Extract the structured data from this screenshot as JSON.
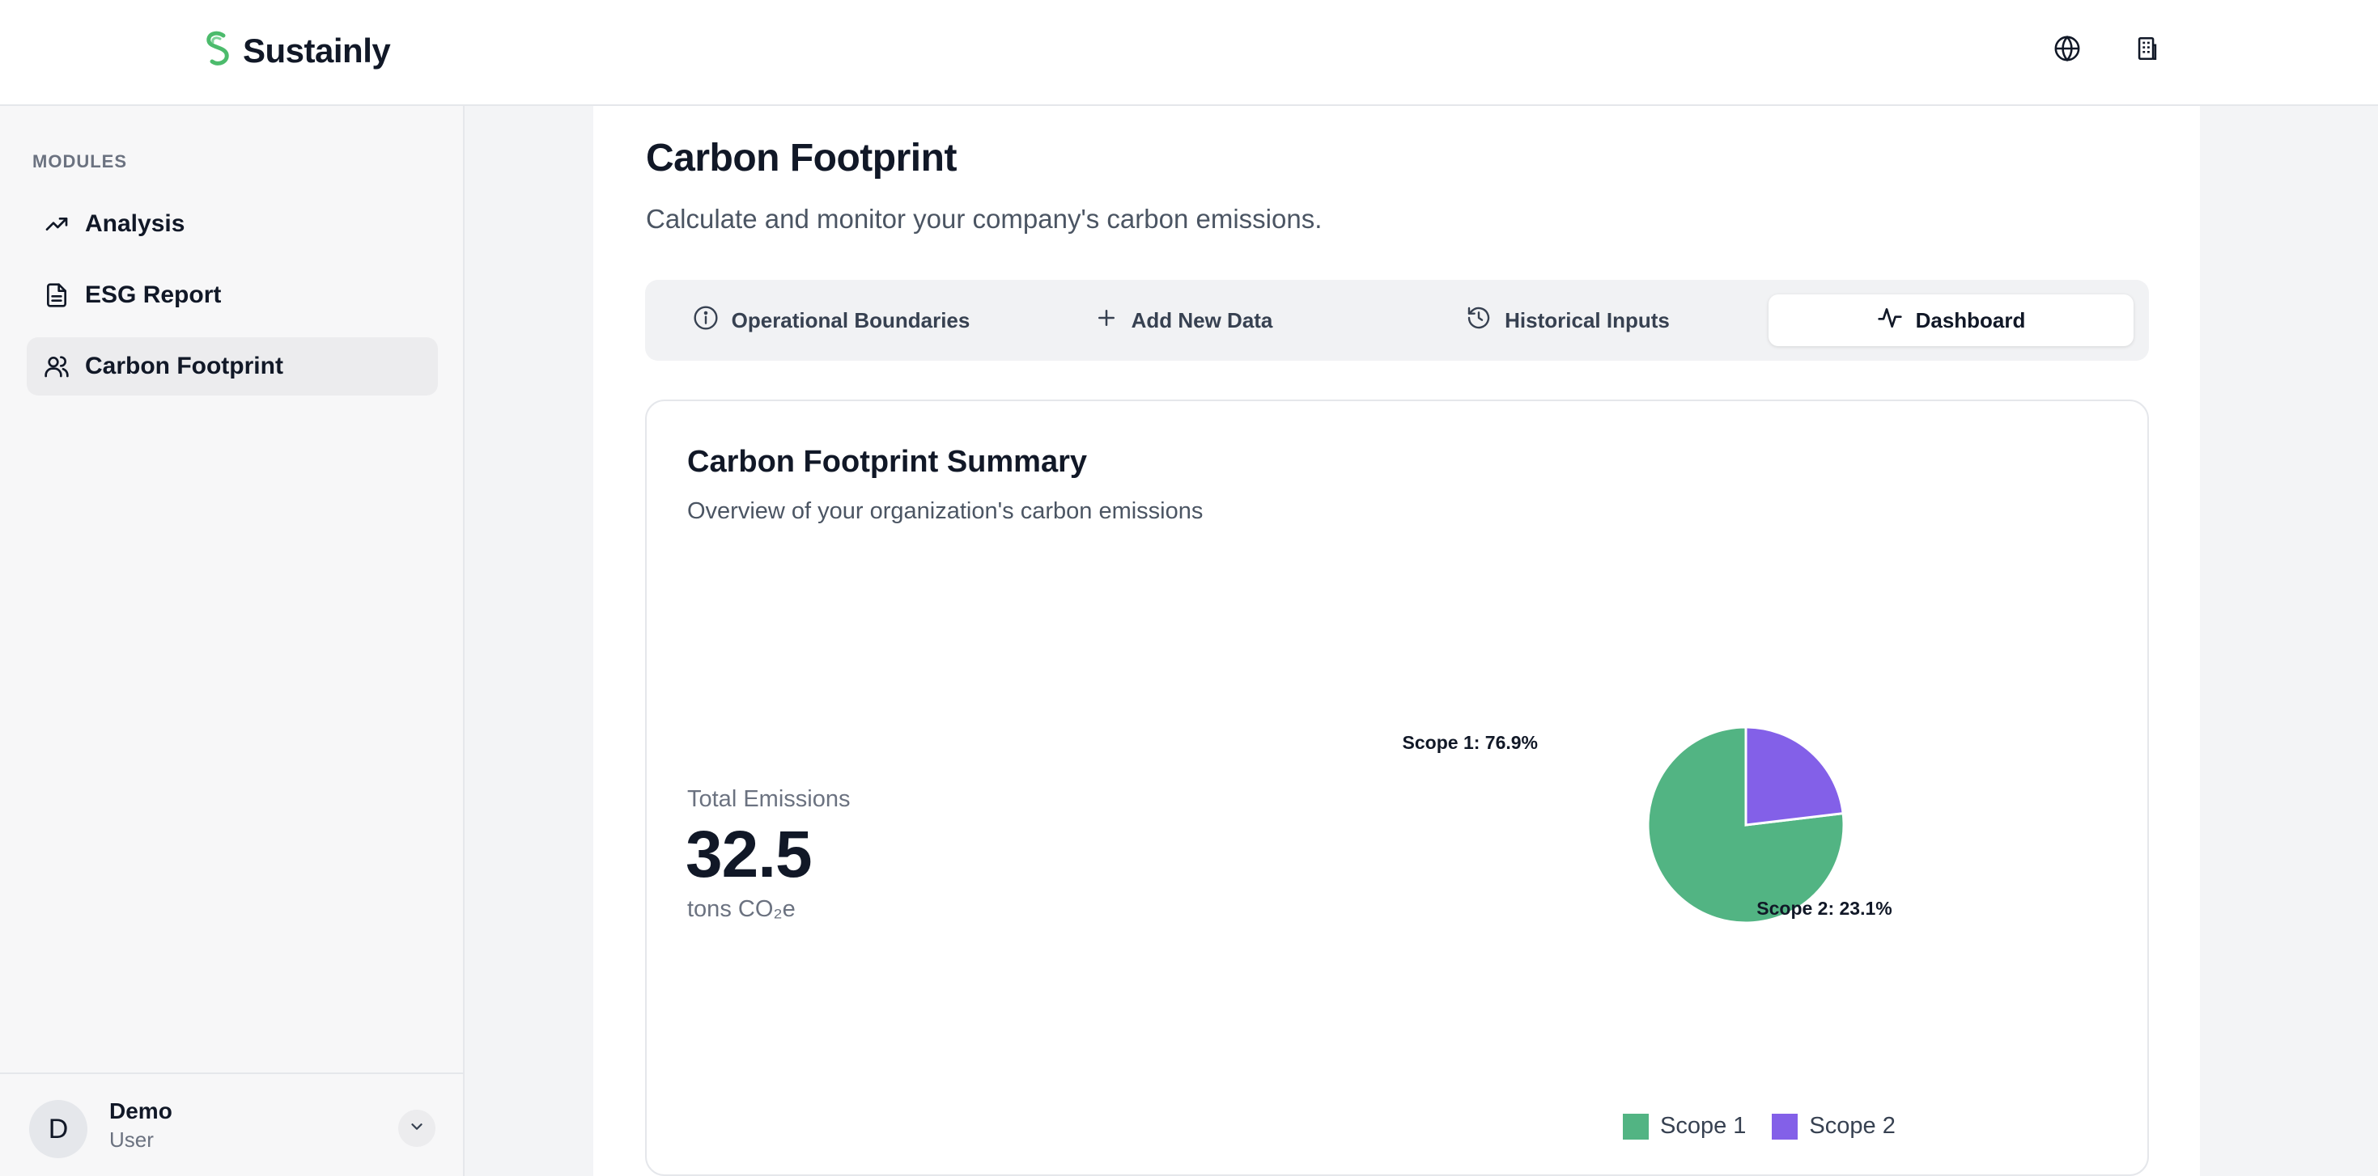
{
  "app": {
    "name": "Sustainly"
  },
  "header": {
    "icons": [
      "globe-icon",
      "building-icon"
    ]
  },
  "sidebar": {
    "section_label": "MODULES",
    "items": [
      {
        "label": "Analysis",
        "icon": "trending-up-icon"
      },
      {
        "label": "ESG Report",
        "icon": "document-icon"
      },
      {
        "label": "Carbon Footprint",
        "icon": "users-icon",
        "active": true
      }
    ],
    "user": {
      "initial": "D",
      "name": "Demo",
      "role": "User"
    }
  },
  "page": {
    "title": "Carbon Footprint",
    "subtitle": "Calculate and monitor your company's carbon emissions."
  },
  "tabs": [
    {
      "label": "Operational Boundaries",
      "icon": "info-icon"
    },
    {
      "label": "Add New Data",
      "icon": "plus-icon"
    },
    {
      "label": "Historical Inputs",
      "icon": "history-icon"
    },
    {
      "label": "Dashboard",
      "icon": "activity-icon",
      "active": true
    }
  ],
  "summary": {
    "title": "Carbon Footprint Summary",
    "subtitle": "Overview of your organization's carbon emissions",
    "total_label": "Total Emissions",
    "total_value": "32.5",
    "total_unit": "tons CO₂e"
  },
  "colors": {
    "scope1": "#52b483",
    "scope2": "#8360e8",
    "brand": "#4cbb6c"
  },
  "chart_data": {
    "type": "pie",
    "categories": [
      "Scope 1",
      "Scope 2"
    ],
    "values": [
      76.9,
      23.1
    ],
    "labels": [
      "Scope 1: 76.9%",
      "Scope 2: 23.1%"
    ],
    "legend": "bottom"
  }
}
